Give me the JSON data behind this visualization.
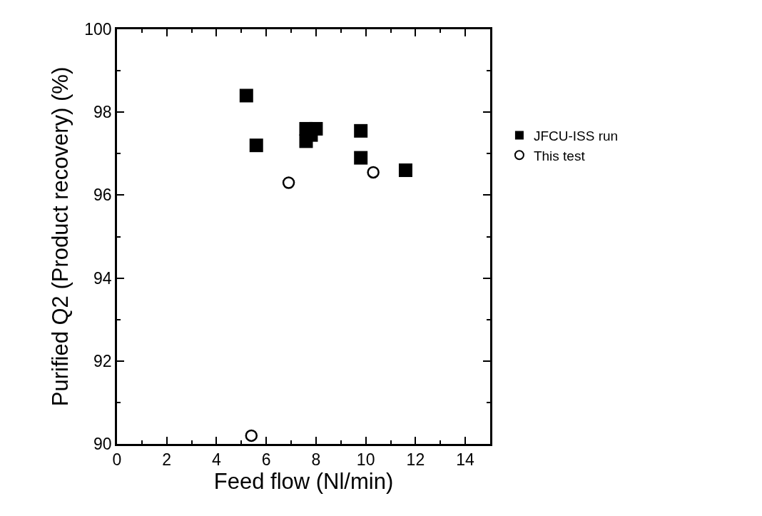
{
  "chart_data": {
    "type": "scatter",
    "xlabel": "Feed flow (Nl/min)",
    "ylabel": "Purified Q2 (Product recovery) (%)",
    "xlim": [
      0,
      15
    ],
    "xticks": [
      0,
      2,
      4,
      6,
      8,
      10,
      12,
      14
    ],
    "ylim": [
      90,
      100
    ],
    "yticks": [
      90,
      92,
      94,
      96,
      98,
      100
    ],
    "grid": false,
    "legend": "right",
    "series": [
      {
        "name": "JFCU-ISS run",
        "color": "#000000",
        "marker": "square",
        "x": [
          5.2,
          5.6,
          7.6,
          8.0,
          7.6,
          7.8,
          9.8,
          9.8,
          11.6
        ],
        "values": [
          98.4,
          97.2,
          97.6,
          97.6,
          97.3,
          97.45,
          97.55,
          96.9,
          96.6
        ]
      },
      {
        "name": "This test",
        "color": "#000000",
        "marker": "circle",
        "x": [
          6.9,
          10.3,
          5.4
        ],
        "values": [
          96.3,
          96.55,
          90.2
        ]
      }
    ]
  }
}
